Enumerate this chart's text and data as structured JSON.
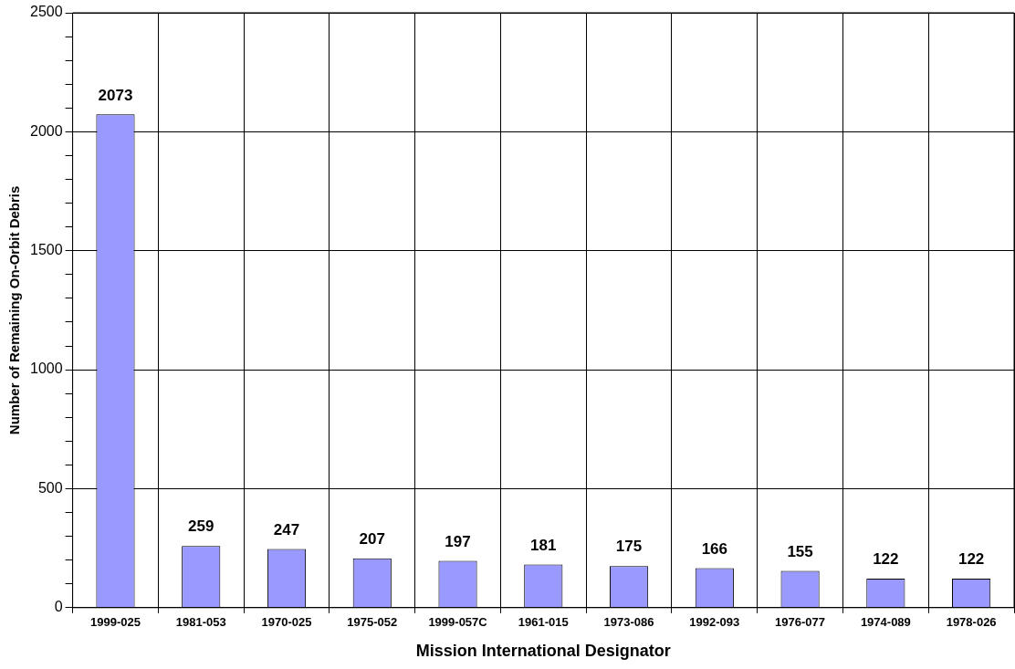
{
  "chart_data": {
    "type": "bar",
    "xlabel": "Mission International Designator",
    "ylabel": "Number of Remaining On-Orbit Debris",
    "categories": [
      "1999-025",
      "1981-053",
      "1970-025",
      "1975-052",
      "1999-057C",
      "1961-015",
      "1973-086",
      "1992-093",
      "1976-077",
      "1974-089",
      "1978-026"
    ],
    "values": [
      2073,
      259,
      247,
      207,
      197,
      181,
      175,
      166,
      155,
      122,
      122
    ],
    "color": "#9999ff",
    "ylim": [
      0,
      2500
    ],
    "yticks": [
      0,
      {
        "value": 100,
        "label": null
      },
      {
        "value": 200,
        "label": null
      },
      {
        "value": 300,
        "label": null
      },
      {
        "value": 400,
        "label": null
      },
      500,
      {
        "value": 600,
        "label": null
      },
      {
        "value": 700,
        "label": null
      },
      {
        "value": 800,
        "label": null
      },
      {
        "value": 900,
        "label": null
      },
      1000,
      {
        "value": 1100,
        "label": null
      },
      {
        "value": 1200,
        "label": null
      },
      {
        "value": 1300,
        "label": null
      },
      {
        "value": 1400,
        "label": null
      },
      1500,
      {
        "value": 1600,
        "label": null
      },
      {
        "value": 1700,
        "label": null
      },
      {
        "value": 1800,
        "label": null
      },
      {
        "value": 1900,
        "label": null
      },
      2000,
      {
        "value": 2100,
        "label": null
      },
      {
        "value": 2200,
        "label": null
      },
      {
        "value": 2300,
        "label": null
      },
      {
        "value": 2400,
        "label": null
      },
      2500
    ],
    "grid": true,
    "data_labels": true
  }
}
